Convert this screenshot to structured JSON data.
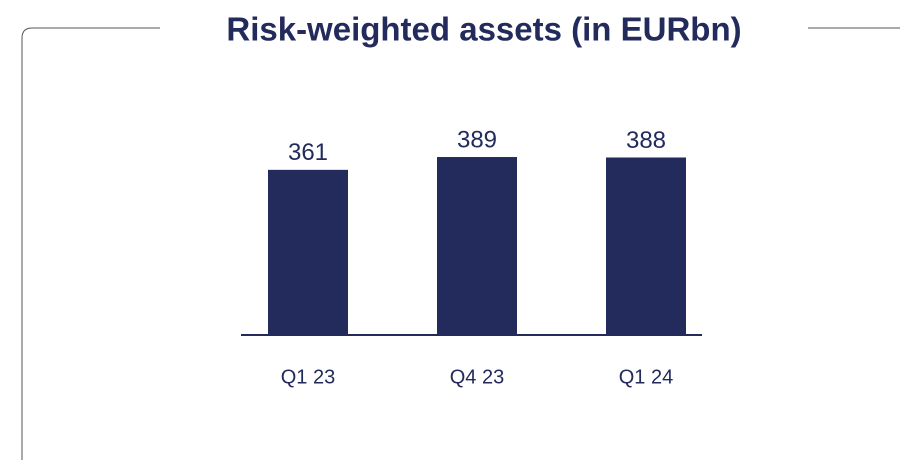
{
  "chart_data": {
    "type": "bar",
    "title": "Risk-weighted assets (in EURbn)",
    "categories": [
      "Q1 23",
      "Q4 23",
      "Q1 24"
    ],
    "values": [
      361,
      389,
      388
    ],
    "color": "#232a5c",
    "ylim": [
      0,
      400
    ]
  }
}
